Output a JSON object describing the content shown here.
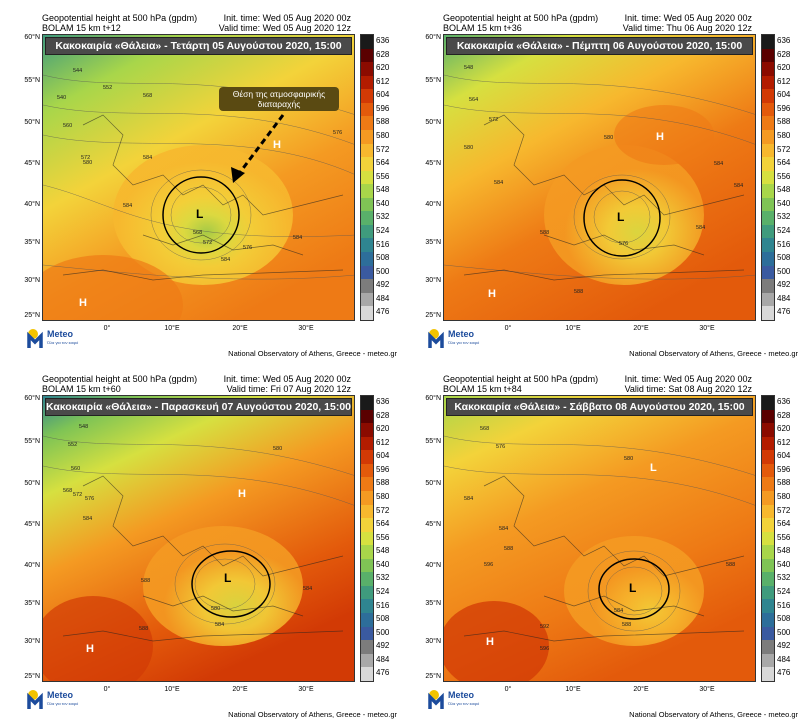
{
  "panels": [
    {
      "id": "p1",
      "header_left": [
        "Geopotential height at 500 hPa (gpdm)",
        "BOLAM 15 km t+12"
      ],
      "header_right": [
        "Init. time: Wed 05 Aug 2020 00z",
        "Valid time: Wed 05 Aug 2020 12z"
      ],
      "banner": "Κακοκαιρία «Θάλεια» - Τετάρτη 05 Αυγούστου 2020, 15:00",
      "annotation": [
        "Θέση της ατμοσφαιρικής",
        "διαταραχής"
      ],
      "labels": {
        "low": "L",
        "high1": "H",
        "high2": "H"
      },
      "contour_values": [
        "544",
        "540",
        "552",
        "560",
        "568",
        "572",
        "576",
        "580",
        "584",
        "568",
        "572",
        "576",
        "584",
        "584",
        "584"
      ]
    },
    {
      "id": "p2",
      "header_left": [
        "Geopotential height at 500 hPa (gpdm)",
        "BOLAM 15 km t+36"
      ],
      "header_right": [
        "Init. time: Wed 05 Aug 2020 00z",
        "Valid time: Thu 06 Aug 2020 12z"
      ],
      "banner": "Κακοκαιρία «Θάλεια» - Πέμπτη 06 Αυγούστου 2020, 15:00",
      "labels": {
        "low": "L",
        "high1": "H",
        "high2": "H"
      },
      "contour_values": [
        "548",
        "564",
        "572",
        "580",
        "584",
        "580",
        "584",
        "588",
        "584",
        "576",
        "584",
        "588"
      ]
    },
    {
      "id": "p3",
      "header_left": [
        "Geopotential height at 500 hPa (gpdm)",
        "BOLAM 15 km t+60"
      ],
      "header_right": [
        "Init. time: Wed 05 Aug 2020 00z",
        "Valid time: Fri 07 Aug 2020 12z"
      ],
      "banner": "Κακοκαιρία «Θάλεια» - Παρασκευή 07 Αυγούστου 2020, 15:00",
      "labels": {
        "low": "L",
        "high1": "H",
        "high2": "H"
      },
      "contour_values": [
        "548",
        "552",
        "560",
        "568",
        "572",
        "576",
        "580",
        "584",
        "588",
        "580",
        "584",
        "584",
        "588"
      ]
    },
    {
      "id": "p4",
      "header_left": [
        "Geopotential height at 500 hPa (gpdm)",
        "BOLAM 15 km t+84"
      ],
      "header_right": [
        "Init. time: Wed 05 Aug 2020 00z",
        "Valid time: Sat 08 Aug 2020 12z"
      ],
      "banner": "Κακοκαιρία «Θάλεια» - Σάββατο 08 Αυγούστου 2020, 15:00",
      "labels": {
        "low": "L",
        "high1": "H",
        "high2": "L"
      },
      "contour_values": [
        "568",
        "576",
        "584",
        "580",
        "584",
        "588",
        "584",
        "588",
        "592",
        "596",
        "596",
        "588"
      ]
    }
  ],
  "lat_ticks": [
    "60°N",
    "55°N",
    "50°N",
    "45°N",
    "40°N",
    "35°N",
    "30°N",
    "25°N"
  ],
  "lon_ticks": [
    "0°",
    "10°E",
    "20°E",
    "30°E"
  ],
  "colorbar_labels": [
    "636",
    "628",
    "620",
    "612",
    "604",
    "596",
    "588",
    "580",
    "572",
    "564",
    "556",
    "548",
    "540",
    "532",
    "524",
    "516",
    "508",
    "500",
    "492",
    "484",
    "476"
  ],
  "colorbar_colors": [
    "#1a1a1a",
    "#5a0000",
    "#8b0b00",
    "#b31c00",
    "#d23a05",
    "#e35a0b",
    "#ee7a15",
    "#f49a22",
    "#f7b82e",
    "#f3d33a",
    "#d6e040",
    "#a8d64a",
    "#7fc455",
    "#59b06a",
    "#3f9b7d",
    "#2f8590",
    "#2d6e9a",
    "#3a5aa0",
    "#7c7c7c",
    "#a8a8a8",
    "#d8d8d8"
  ],
  "footer": "National Observatory of Athens, Greece - meteo.gr",
  "logo": {
    "name": "Meteo",
    "tagline": "Όλα για τον καιρό"
  }
}
